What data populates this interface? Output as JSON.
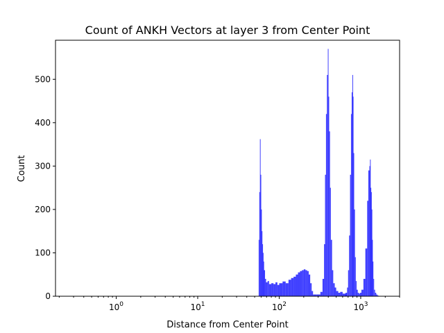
{
  "chart_data": {
    "type": "bar",
    "title": "Count of ANKH Vectors at layer 3 from Center Point",
    "xlabel": "Distance from Center Point",
    "ylabel": "Count",
    "x_scale": "log",
    "xlim": [
      0.18,
      3000
    ],
    "ylim": [
      0,
      590
    ],
    "xticks": [
      {
        "value": 1,
        "base": "10",
        "exp": "0"
      },
      {
        "value": 10,
        "base": "10",
        "exp": "1"
      },
      {
        "value": 100,
        "base": "10",
        "exp": "2"
      },
      {
        "value": 1000,
        "base": "10",
        "exp": "3"
      }
    ],
    "yticks": [
      0,
      100,
      200,
      300,
      400,
      500
    ],
    "bar_color": "#0000ff",
    "bar_opacity": 0.75,
    "grid": false,
    "series": [
      {
        "x": [
          56,
          57,
          58,
          59,
          60,
          61,
          62,
          63,
          64,
          65,
          67,
          69,
          72,
          75,
          80,
          85,
          90,
          95,
          100,
          110,
          120,
          130,
          140,
          150,
          160,
          170,
          180,
          190,
          200,
          210,
          220,
          230,
          240,
          250,
          260,
          290,
          320,
          340,
          355,
          365,
          375,
          385,
          395,
          402,
          410,
          420,
          430,
          445,
          460,
          480,
          500,
          530,
          560,
          600,
          650,
          650,
          680,
          700,
          720,
          740,
          760,
          775,
          790,
          800,
          815,
          830,
          850,
          870,
          890,
          920,
          950,
          980,
          1020,
          1080,
          1140,
          1200,
          1240,
          1280,
          1300,
          1320,
          1340,
          1360,
          1380,
          1400,
          1430,
          1460,
          1500,
          1550,
          1600
        ],
        "y": [
          130,
          240,
          362,
          280,
          200,
          150,
          120,
          100,
          80,
          60,
          40,
          32,
          35,
          28,
          30,
          28,
          32,
          26,
          30,
          34,
          30,
          38,
          42,
          45,
          50,
          55,
          58,
          60,
          62,
          60,
          58,
          50,
          30,
          12,
          4,
          4,
          10,
          40,
          120,
          280,
          420,
          510,
          570,
          460,
          380,
          250,
          130,
          60,
          30,
          20,
          12,
          8,
          10,
          6,
          4,
          8,
          20,
          60,
          140,
          280,
          420,
          470,
          510,
          460,
          330,
          200,
          90,
          35,
          15,
          8,
          6,
          8,
          15,
          40,
          110,
          220,
          290,
          300,
          315,
          250,
          240,
          200,
          130,
          80,
          40,
          15,
          8,
          4,
          2
        ]
      }
    ]
  }
}
